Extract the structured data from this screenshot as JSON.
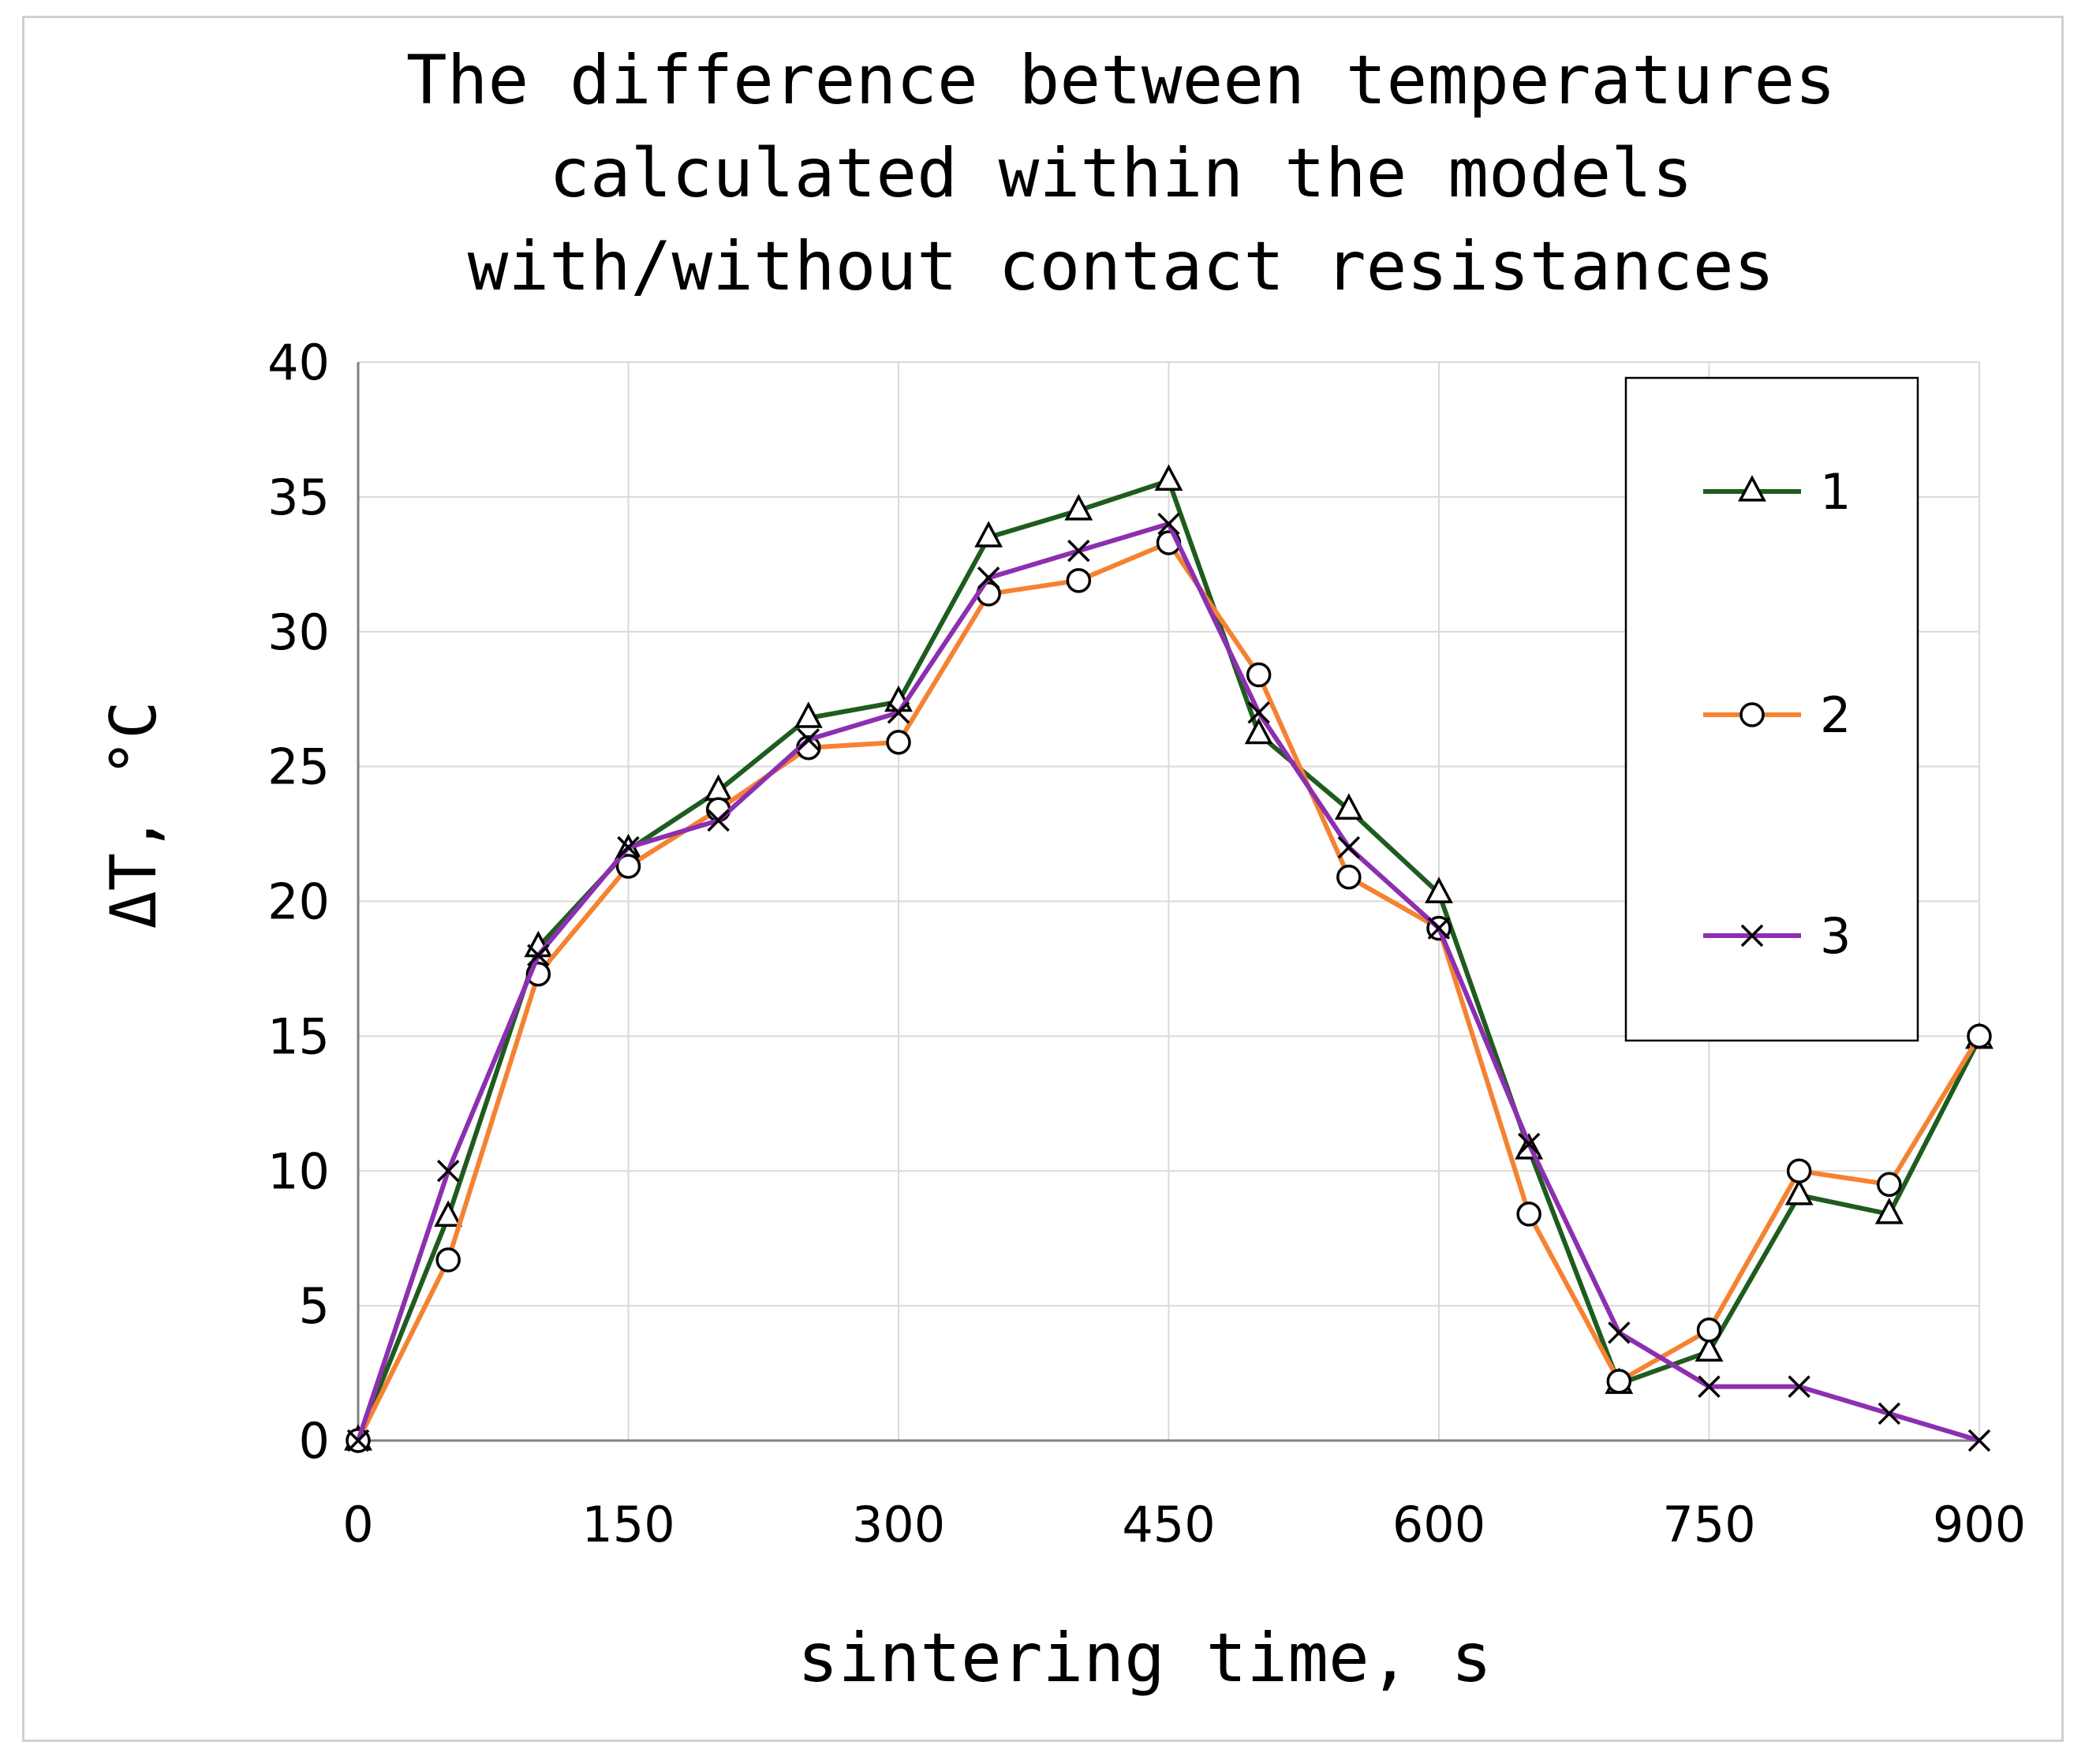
{
  "chart_data": {
    "type": "line",
    "title": [
      "The difference between temperatures",
      "calculated within the models",
      "with/without contact resistances"
    ],
    "xlabel": "sintering time, s",
    "ylabel_symbol": "ΔT",
    "ylabel_unit": ", °C",
    "xlim": [
      0,
      900
    ],
    "ylim": [
      0,
      40
    ],
    "xticks": [
      0,
      150,
      300,
      450,
      600,
      750,
      900
    ],
    "yticks": [
      0,
      5,
      10,
      15,
      20,
      25,
      30,
      35,
      40
    ],
    "grid": true,
    "legend_position": "top-right",
    "x": [
      0,
      50,
      100,
      150,
      200,
      250,
      300,
      350,
      400,
      450,
      500,
      550,
      600,
      650,
      700,
      750,
      800,
      850,
      900
    ],
    "series": [
      {
        "name": "1",
        "marker": "triangle",
        "color": "#1e5c1e",
        "values": [
          0,
          8.3,
          18.3,
          21.9,
          24.1,
          26.8,
          27.4,
          33.5,
          34.5,
          35.6,
          26.2,
          23.4,
          20.3,
          10.8,
          2.1,
          3.3,
          9.1,
          8.4,
          14.9
        ]
      },
      {
        "name": "2",
        "marker": "circle",
        "color": "#f58231",
        "values": [
          0,
          6.7,
          17.3,
          21.3,
          23.4,
          25.7,
          25.9,
          31.4,
          31.9,
          33.3,
          28.4,
          20.9,
          19.0,
          8.4,
          2.2,
          4.1,
          10.0,
          9.5,
          15.0
        ]
      },
      {
        "name": "3",
        "marker": "cross",
        "color": "#8c2fb0",
        "values": [
          0,
          10.0,
          18.0,
          22.0,
          23.0,
          26.0,
          27.0,
          32.0,
          33.0,
          34.0,
          27.0,
          22.0,
          19.0,
          11.0,
          4.0,
          2.0,
          2.0,
          1.0,
          0
        ]
      }
    ]
  }
}
